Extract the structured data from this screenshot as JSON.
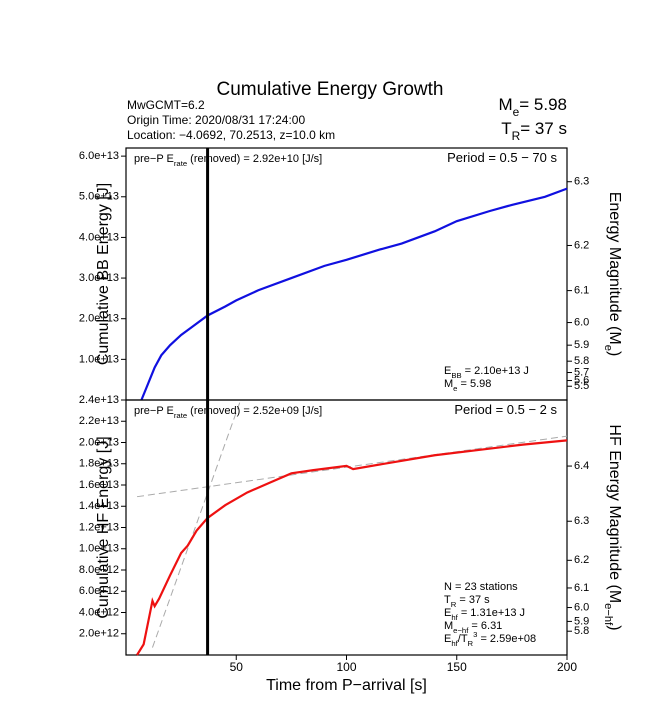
{
  "title": "Cumulative Energy Growth",
  "header": {
    "info": [
      "MwGCMT=6.2",
      "Origin Time: 2020/08/31 17:24:00",
      "Location: −4.0692, 70.2513, z=10.0 km"
    ],
    "me": [
      "M",
      {
        "sub": "e"
      },
      "= 5.98"
    ],
    "tr": [
      "T",
      {
        "sub": "R"
      },
      "= 37 s"
    ]
  },
  "chart_data": [
    {
      "type": "line",
      "ylabel": [
        "Cumulative BB Energy [J]"
      ],
      "y2label": [
        "Energy Magnitude (M",
        {
          "sub": "e"
        },
        ")"
      ],
      "xlim": [
        0,
        200
      ],
      "ylim": [
        0,
        62000000000000.0
      ],
      "yticks": [
        {
          "value": 10000000000000.0,
          "label": "1.0e+13"
        },
        {
          "value": 20000000000000.0,
          "label": "2.0e+13"
        },
        {
          "value": 30000000000000.0,
          "label": "3.0e+13"
        },
        {
          "value": 40000000000000.0,
          "label": "4.0e+13"
        },
        {
          "value": 50000000000000.0,
          "label": "5.0e+13"
        },
        {
          "value": 60000000000000.0,
          "label": "6.0e+13"
        }
      ],
      "y2ticks": [
        5.5,
        5.6,
        5.7,
        5.8,
        5.9,
        {
          "value": 6,
          "label": "6.0"
        },
        6.1,
        6.2,
        6.3
      ],
      "x": [
        7,
        10,
        13,
        16,
        20,
        25,
        30,
        37,
        45,
        50,
        60,
        75,
        90,
        100,
        115,
        125,
        140,
        150,
        165,
        175,
        190,
        200
      ],
      "series": [
        {
          "color": "#1010e0",
          "values": [
            0,
            4000000000000.0,
            8000000000000.0,
            11000000000000.0,
            13500000000000.0,
            16000000000000.0,
            18000000000000.0,
            20800000000000.0,
            23000000000000.0,
            24500000000000.0,
            27000000000000.0,
            30000000000000.0,
            33000000000000.0,
            34500000000000.0,
            37000000000000.0,
            38500000000000.0,
            41500000000000.0,
            44000000000000.0,
            46500000000000.0,
            48000000000000.0,
            50000000000000.0,
            52000000000000.0
          ]
        }
      ],
      "marker_x": 37,
      "rate_note": [
        "pre−P E",
        {
          "sub": "rate"
        },
        " (removed) = 2.92e+10 [J/s]"
      ],
      "period": [
        "Period = 0.5 − 70 s"
      ],
      "stats": [
        [
          "E",
          {
            "sub": "BB"
          },
          " = 2.10e+13 J"
        ],
        [
          "M",
          {
            "sub": "e"
          },
          " = 5.98"
        ]
      ]
    },
    {
      "type": "line",
      "ylabel": [
        "Cumulative HF Energy [J]"
      ],
      "y2label": [
        "HF Energy Magnitude (M",
        {
          "sub": "e−hf"
        },
        ")"
      ],
      "xlabel": "Time from P−arrival [s]",
      "xlim": [
        0,
        200
      ],
      "xticks": [
        50,
        100,
        150,
        200
      ],
      "ylim": [
        0,
        24000000000000.0
      ],
      "yticks": [
        {
          "value": 2000000000000.0,
          "label": "2.0e+12"
        },
        {
          "value": 4000000000000.0,
          "label": "4.0e+12"
        },
        {
          "value": 6000000000000.0,
          "label": "6.0e+12"
        },
        {
          "value": 8000000000000.0,
          "label": "8.0e+12"
        },
        {
          "value": 10000000000000.0,
          "label": "1.0e+13"
        },
        {
          "value": 12000000000000.0,
          "label": "1.2e+13"
        },
        {
          "value": 14000000000000.0,
          "label": "1.4e+13"
        },
        {
          "value": 16000000000000.0,
          "label": "1.6e+13"
        },
        {
          "value": 18000000000000.0,
          "label": "1.8e+13"
        },
        {
          "value": 20000000000000.0,
          "label": "2.0e+13"
        },
        {
          "value": 22000000000000.0,
          "label": "2.2e+13"
        },
        {
          "value": 24000000000000.0,
          "label": "2.4e+13"
        }
      ],
      "y2ticks": [
        5.8,
        5.9,
        {
          "value": 6,
          "label": "6.0"
        },
        6.1,
        6.2,
        6.3,
        6.4
      ],
      "x": [
        5,
        8,
        12,
        13,
        15,
        20,
        25,
        28,
        32,
        37,
        45,
        55,
        65,
        75,
        85,
        100,
        103,
        120,
        140,
        160,
        180,
        200
      ],
      "series": [
        {
          "color": "#ee1111",
          "values": [
            0,
            1000000000000.0,
            5100000000000.0,
            4600000000000.0,
            5300000000000.0,
            7500000000000.0,
            9600000000000.0,
            10300000000000.0,
            11700000000000.0,
            12900000000000.0,
            14100000000000.0,
            15300000000000.0,
            16200000000000.0,
            17100000000000.0,
            17400000000000.0,
            17800000000000.0,
            17500000000000.0,
            18100000000000.0,
            18800000000000.0,
            19300000000000.0,
            19800000000000.0,
            20200000000000.0
          ]
        }
      ],
      "reference_lines": [
        {
          "color": "#aaaaaa",
          "x": [
            12,
            52
          ],
          "values": [
            700000000000.0,
            24000000000000.0
          ]
        },
        {
          "color": "#aaaaaa",
          "x": [
            5,
            200
          ],
          "values": [
            14900000000000.0,
            20600000000000.0
          ]
        }
      ],
      "marker_x": 37,
      "rate_note": [
        "pre−P E",
        {
          "sub": "rate"
        },
        " (removed) = 2.52e+09 [J/s]"
      ],
      "period": [
        "Period = 0.5 − 2 s"
      ],
      "stats": [
        [
          "N = 23 stations"
        ],
        [
          "T",
          {
            "sub": "R"
          },
          " = 37  s"
        ],
        [
          "E",
          {
            "sub": "hf"
          },
          " = 1.31e+13 J"
        ],
        [
          "M",
          {
            "sub": "e−hf"
          },
          " = 6.31"
        ],
        [
          "E",
          {
            "sub": "hf"
          },
          "/T",
          {
            "sub": "R"
          },
          {
            "sup": "3"
          },
          " =  2.59e+08"
        ]
      ]
    }
  ]
}
